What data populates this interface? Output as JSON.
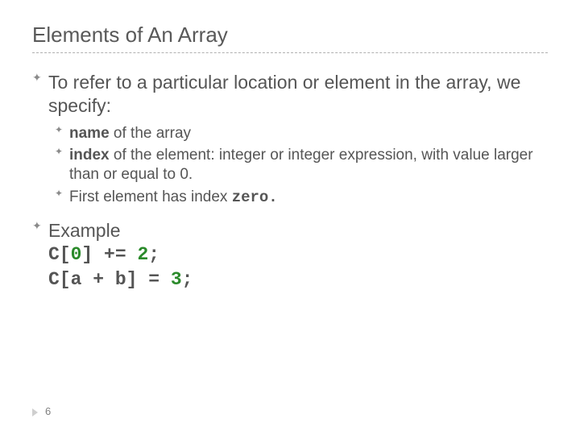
{
  "title": "Elements of An Array",
  "bullet_glyph": "✦",
  "main1": "To refer to a particular location or element in the array, we specify:",
  "sub1_bold": "name",
  "sub1_rest": " of the array",
  "sub2_bold": "index",
  "sub2_rest": " of the element:  integer or integer expression, with value larger than or equal to 0.",
  "sub3_a": "First element has index ",
  "sub3_b": "zero.",
  "example_label": "Example",
  "code1_a": "C[",
  "code1_b": "0",
  "code1_c": "] += ",
  "code1_d": "2",
  "code1_e": ";",
  "code2_a": "C[a + b] = ",
  "code2_b": "3",
  "code2_c": ";",
  "page_number": "6",
  "colors": {
    "text": "#555555",
    "title": "#595959",
    "bullet": "#8a8a8a",
    "code_number": "#2a8a2a",
    "dashed": "#b0b0b0"
  },
  "fontsize": {
    "title": 26,
    "main": 23,
    "sub": 19,
    "pagenum": 13
  }
}
